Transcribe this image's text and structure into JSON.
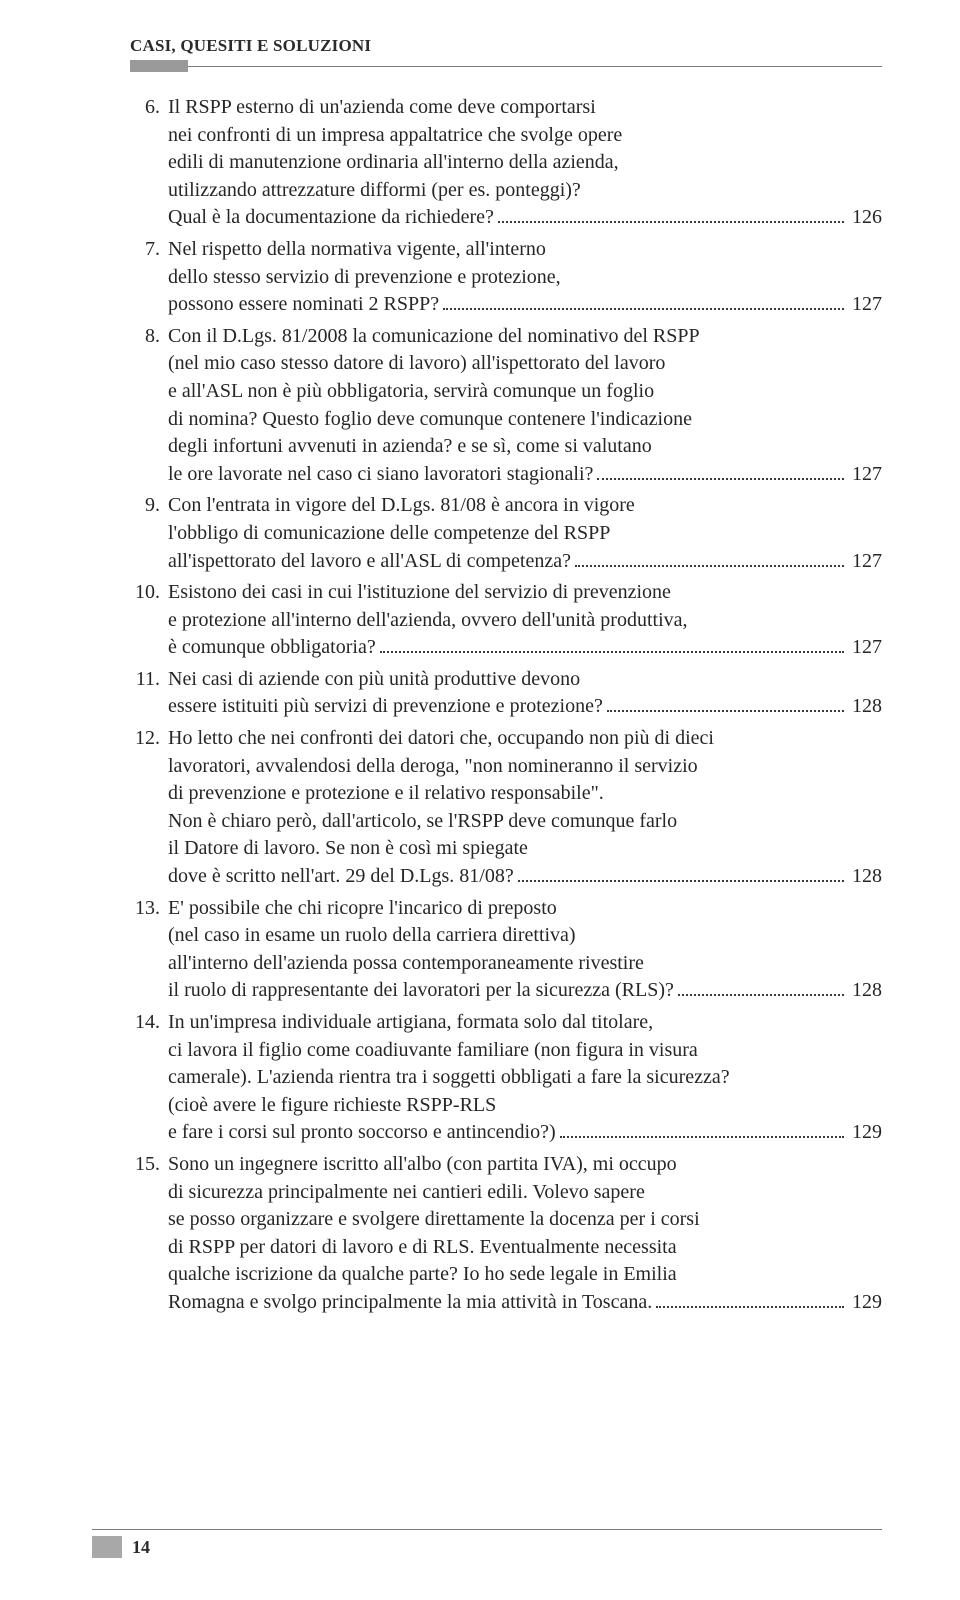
{
  "header": {
    "title": "CASI, QUESITI E SOLUZIONI"
  },
  "footer": {
    "page": "14"
  },
  "toc": [
    {
      "num": "6.",
      "lines": [
        "Il RSPP esterno di un'azienda come deve comportarsi",
        "nei confronti di un impresa appaltatrice che svolge opere",
        "edili di manutenzione ordinaria all'interno della azienda,",
        "utilizzando attrezzature difformi (per es. ponteggi)?"
      ],
      "last": "Qual è la documentazione da richiedere?",
      "page": "126"
    },
    {
      "num": "7.",
      "lines": [
        "Nel rispetto della normativa vigente, all'interno",
        "dello stesso servizio di prevenzione e protezione,"
      ],
      "last": "possono essere nominati 2 RSPP?",
      "page": "127"
    },
    {
      "num": "8.",
      "lines": [
        "Con il D.Lgs. 81/2008 la comunicazione del nominativo del RSPP",
        "(nel mio caso stesso datore di lavoro) all'ispettorato del lavoro",
        "e all'ASL non è più obbligatoria, servirà comunque un foglio",
        "di nomina? Questo foglio deve comunque contenere l'indicazione",
        "degli infortuni avvenuti in azienda? e se sì, come si valutano"
      ],
      "last": "le ore lavorate nel caso ci siano lavoratori stagionali?",
      "page": "127"
    },
    {
      "num": "9.",
      "lines": [
        "Con l'entrata in vigore del D.Lgs. 81/08 è ancora in vigore",
        "l'obbligo di comunicazione delle competenze del RSPP"
      ],
      "last": "all'ispettorato del lavoro e all'ASL di competenza?",
      "page": "127"
    },
    {
      "num": "10.",
      "lines": [
        "Esistono dei casi in cui l'istituzione del servizio di prevenzione",
        "e protezione all'interno dell'azienda, ovvero dell'unità produttiva,"
      ],
      "last": "è comunque obbligatoria?",
      "page": "127"
    },
    {
      "num": "11.",
      "lines": [
        "Nei casi di aziende con più unità produttive devono"
      ],
      "last": "essere istituiti più servizi di prevenzione e protezione?",
      "page": "128"
    },
    {
      "num": "12.",
      "lines": [
        "Ho letto che nei confronti dei datori che, occupando non più di dieci",
        "lavoratori, avvalendosi della deroga, \"non nomineranno il servizio",
        "di prevenzione e protezione e il relativo responsabile\".",
        "Non è chiaro però, dall'articolo, se l'RSPP deve comunque farlo",
        "il Datore di lavoro. Se non è così mi spiegate"
      ],
      "last": "dove è scritto nell'art. 29 del D.Lgs. 81/08?",
      "page": "128"
    },
    {
      "num": "13.",
      "lines": [
        "E' possibile che chi ricopre l'incarico di preposto",
        "(nel caso in esame un ruolo della carriera direttiva)",
        "all'interno dell'azienda possa contemporaneamente rivestire"
      ],
      "last": "il ruolo di rappresentante dei lavoratori per la sicurezza (RLS)?",
      "page": "128"
    },
    {
      "num": "14.",
      "lines": [
        "In un'impresa individuale artigiana, formata solo dal titolare,",
        "ci lavora il figlio come coadiuvante familiare (non figura in visura",
        "camerale). L'azienda rientra tra i soggetti obbligati a fare la sicurezza?",
        "(cioè avere le figure richieste RSPP-RLS"
      ],
      "last": "e fare i corsi sul pronto soccorso e antincendio?)",
      "page": "129"
    },
    {
      "num": "15.",
      "lines": [
        "Sono un ingegnere iscritto all'albo (con partita IVA), mi occupo",
        "di sicurezza principalmente nei cantieri edili. Volevo sapere",
        "se posso organizzare e svolgere direttamente la docenza per i corsi",
        "di RSPP per datori di lavoro e di RLS. Eventualmente necessita",
        "qualche iscrizione da qualche parte? Io ho sede legale in Emilia"
      ],
      "last": "Romagna e svolgo principalmente la mia attività in Toscana.",
      "page": "129"
    }
  ]
}
